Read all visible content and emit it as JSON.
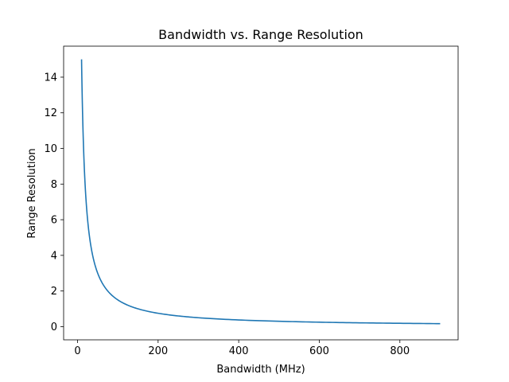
{
  "chart_data": {
    "type": "line",
    "title": "Bandwidth vs. Range Resolution",
    "xlabel": "Bandwidth (MHz)",
    "ylabel": "Range Resolution",
    "xlim": [
      -34.5,
      944.5
    ],
    "ylim": [
      -0.74,
      15.74
    ],
    "xticks": [
      0,
      200,
      400,
      600,
      800
    ],
    "yticks": [
      0,
      2,
      4,
      6,
      8,
      10,
      12,
      14
    ],
    "grid": false,
    "legend": "none",
    "series": [
      {
        "color": "#1f77b4",
        "x": [
          10,
          12,
          15,
          20,
          25,
          30,
          40,
          50,
          60,
          75,
          100,
          125,
          150,
          200,
          250,
          300,
          400,
          500,
          600,
          700,
          800,
          900
        ],
        "y": [
          15.0,
          12.5,
          10.0,
          7.5,
          6.0,
          5.0,
          3.75,
          3.0,
          2.5,
          2.0,
          1.5,
          1.2,
          1.0,
          0.75,
          0.6,
          0.5,
          0.375,
          0.3,
          0.25,
          0.214,
          0.1875,
          0.167
        ]
      }
    ]
  }
}
